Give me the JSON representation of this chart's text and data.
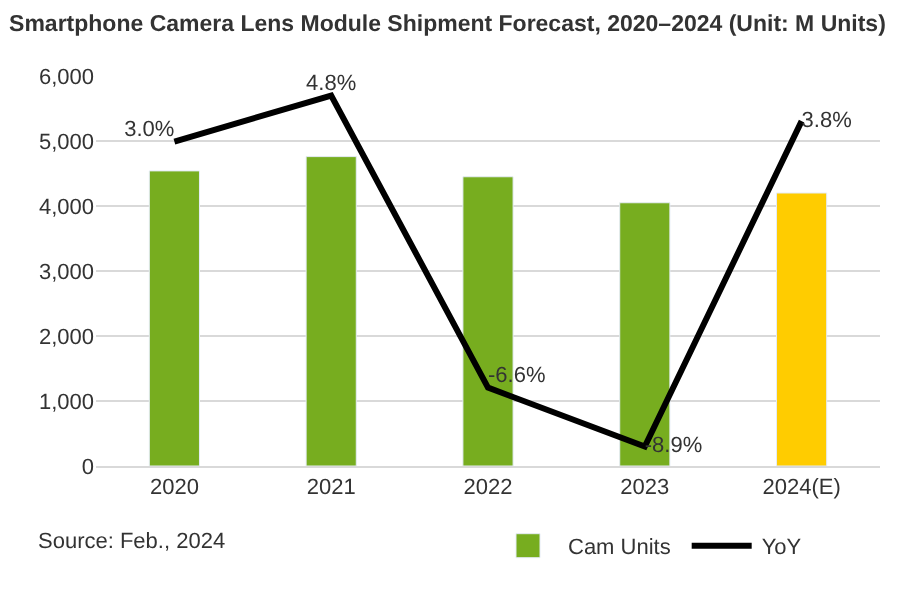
{
  "chart_data": {
    "type": "bar",
    "title": "Smartphone Camera Lens Module Shipment Forecast, 2020–2024 (Unit: M Units)",
    "categories": [
      "2020",
      "2021",
      "2022",
      "2023",
      "2024(E)"
    ],
    "series": [
      {
        "name": "Cam Units",
        "color": "#77ad1f",
        "colors": [
          "#77ad1f",
          "#77ad1f",
          "#77ad1f",
          "#77ad1f",
          "#ffcc00"
        ],
        "values": [
          4540,
          4760,
          4450,
          4050,
          4200
        ]
      },
      {
        "name": "YoY",
        "type": "line",
        "axis": "y2",
        "color": "#000000",
        "values": [
          3.0,
          4.8,
          -6.6,
          -8.9,
          3.8
        ],
        "value_labels": [
          "3.0%",
          "4.8%",
          "-6.6%",
          "-8.9%",
          "3.8%"
        ]
      }
    ],
    "ylim": [
      0,
      6000
    ],
    "yticks": [
      {
        "value": 0,
        "label": "0"
      },
      {
        "value": 1000,
        "label": "1,000"
      },
      {
        "value": 2000,
        "label": "2,000"
      },
      {
        "value": 3000,
        "label": "3,000"
      },
      {
        "value": 4000,
        "label": "4,000"
      },
      {
        "value": 5000,
        "label": "5,000"
      },
      {
        "value": 6000,
        "label": "6,000"
      }
    ],
    "grid": "y",
    "legend": "bottom",
    "marker": "none",
    "line_style": "solid",
    "tick_labels": "y",
    "annotations": [
      "Source: Feb., 2024"
    ]
  }
}
